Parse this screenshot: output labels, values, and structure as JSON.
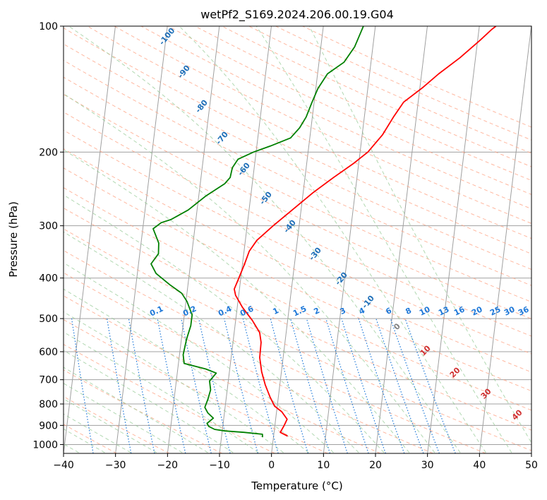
{
  "chart_data": {
    "type": "line",
    "title": "wetPf2_S169.2024.206.00.19.G04",
    "xlabel": "Temperature (°C)",
    "ylabel": "Pressure (hPa)",
    "xlim": [
      -40,
      50
    ],
    "ylim": [
      1050,
      100
    ],
    "y_scale": "log",
    "grid": true,
    "x_ticks": [
      "−40",
      "−30",
      "−20",
      "−10",
      "0",
      "10",
      "20",
      "30",
      "40",
      "50"
    ],
    "y_ticks": [
      "100",
      "200",
      "300",
      "400",
      "500",
      "600",
      "700",
      "800",
      "900",
      "1000"
    ],
    "y_tick_values": [
      100,
      200,
      300,
      400,
      500,
      600,
      700,
      800,
      900,
      1000
    ],
    "series": [
      {
        "color": "#ff0000",
        "points": [
          [
            2.7,
            955
          ],
          [
            1.2,
            935
          ],
          [
            1.8,
            900
          ],
          [
            2.2,
            870
          ],
          [
            1.0,
            835
          ],
          [
            -0.5,
            810
          ],
          [
            -1.6,
            770
          ],
          [
            -2.8,
            720
          ],
          [
            -3.8,
            670
          ],
          [
            -4.5,
            620
          ],
          [
            -4.6,
            570
          ],
          [
            -5.1,
            540
          ],
          [
            -6.8,
            505
          ],
          [
            -9.0,
            470
          ],
          [
            -10.6,
            440
          ],
          [
            -11.0,
            425
          ],
          [
            -10.5,
            405
          ],
          [
            -9.6,
            370
          ],
          [
            -9.0,
            345
          ],
          [
            -7.8,
            325
          ],
          [
            -5.0,
            300
          ],
          [
            -1.7,
            275
          ],
          [
            1.9,
            250
          ],
          [
            5.5,
            230
          ],
          [
            9.0,
            213
          ],
          [
            11.5,
            200
          ],
          [
            13.9,
            182
          ],
          [
            15.6,
            165
          ],
          [
            17.2,
            152
          ],
          [
            20.6,
            140
          ],
          [
            23.3,
            130
          ],
          [
            27.0,
            119
          ],
          [
            30.5,
            108
          ],
          [
            32.4,
            102
          ],
          [
            33.2,
            100
          ]
        ]
      },
      {
        "color": "#008000",
        "points": [
          [
            -2.1,
            960
          ],
          [
            -2.2,
            945
          ],
          [
            -5.8,
            935
          ],
          [
            -9.5,
            928
          ],
          [
            -11.5,
            920
          ],
          [
            -12.7,
            905
          ],
          [
            -13.1,
            890
          ],
          [
            -12.0,
            865
          ],
          [
            -13.2,
            840
          ],
          [
            -13.9,
            815
          ],
          [
            -13.5,
            780
          ],
          [
            -13.2,
            740
          ],
          [
            -13.6,
            705
          ],
          [
            -12.5,
            675
          ],
          [
            -14.6,
            660
          ],
          [
            -18.9,
            640
          ],
          [
            -19.3,
            610
          ],
          [
            -19.0,
            560
          ],
          [
            -18.5,
            520
          ],
          [
            -18.5,
            490
          ],
          [
            -19.8,
            455
          ],
          [
            -21.0,
            435
          ],
          [
            -23.5,
            415
          ],
          [
            -26.4,
            390
          ],
          [
            -27.6,
            370
          ],
          [
            -26.4,
            350
          ],
          [
            -26.6,
            330
          ],
          [
            -28.0,
            305
          ],
          [
            -26.6,
            295
          ],
          [
            -24.8,
            290
          ],
          [
            -21.7,
            275
          ],
          [
            -18.7,
            255
          ],
          [
            -15.3,
            238
          ],
          [
            -14.4,
            230
          ],
          [
            -14.2,
            218
          ],
          [
            -13.3,
            208
          ],
          [
            -10.5,
            200
          ],
          [
            -7.2,
            193
          ],
          [
            -3.7,
            185
          ],
          [
            -2.2,
            175
          ],
          [
            -1.2,
            165
          ],
          [
            -0.4,
            152
          ],
          [
            0.4,
            141
          ],
          [
            1.9,
            130
          ],
          [
            4.8,
            122
          ],
          [
            6.5,
            112
          ],
          [
            7.7,
            100
          ]
        ]
      }
    ],
    "dry_adiabat_labels": [
      "-100",
      "-90",
      "-80",
      "-70",
      "-60",
      "-50",
      "-40",
      "-30",
      "-20",
      "-10"
    ],
    "mixing_ratio_labels": [
      "0.1",
      "0.2",
      "0.4",
      "0.6",
      "1",
      "1.5",
      "2",
      "3",
      "4",
      "6",
      "8",
      "10",
      "13",
      "16",
      "20",
      "25",
      "30",
      "36"
    ],
    "moist_adiabat_labels": [
      "0",
      "10",
      "20",
      "30",
      "40"
    ],
    "colors": {
      "temperature": "#ff0000",
      "dewpoint": "#008000",
      "isotherm": "#a0a0a0",
      "dry_adiabat": "#ffa080",
      "moist_adiabat": "#90c890",
      "mixing_ratio": "#1e78d8",
      "dry_label": "#1f6fb8",
      "moist_label": "#d03030",
      "zero_label": "#808080"
    }
  }
}
